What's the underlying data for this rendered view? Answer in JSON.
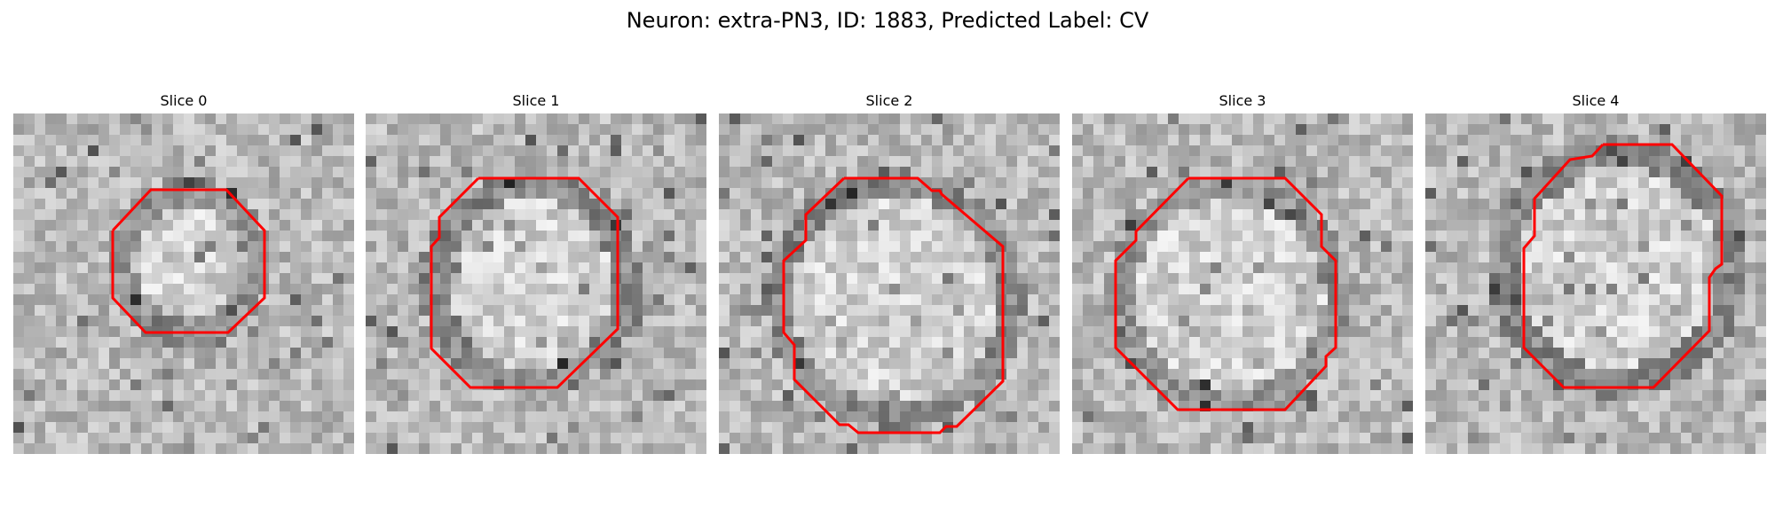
{
  "figure": {
    "title": "Neuron: extra-PN3, ID: 1883, Predicted Label: CV",
    "contour_color": "#ff0000"
  },
  "slices": [
    {
      "title": "Slice 0",
      "seed": 11,
      "darkness": 0.35
    },
    {
      "title": "Slice 1",
      "seed": 23,
      "darkness": 0.45
    },
    {
      "title": "Slice 2",
      "seed": 37,
      "darkness": 0.45
    },
    {
      "title": "Slice 3",
      "seed": 41,
      "darkness": 0.35
    },
    {
      "title": "Slice 4",
      "seed": 59,
      "darkness": 0.45
    }
  ]
}
